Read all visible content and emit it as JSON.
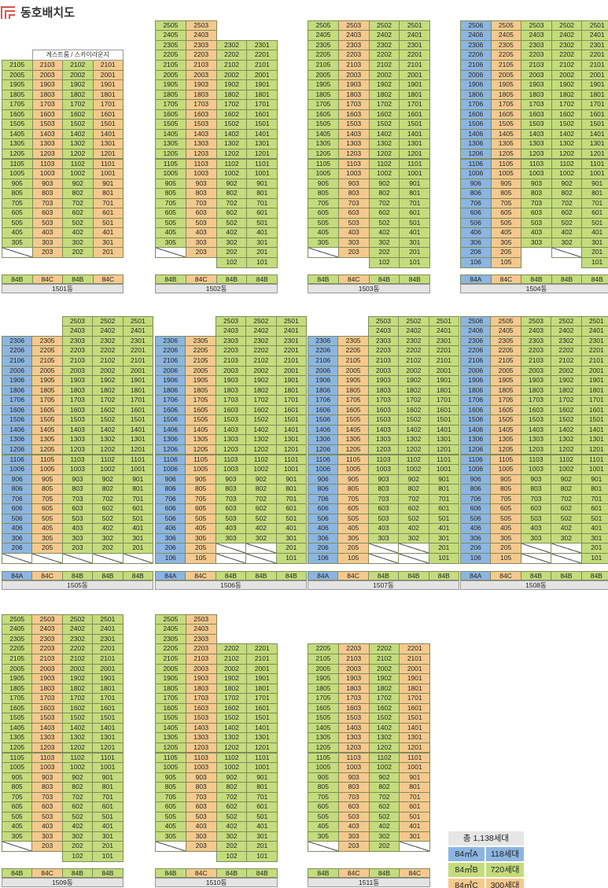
{
  "header": {
    "title": "동호배치도",
    "logo_icon": "building-logo-icon"
  },
  "colors": {
    "84A": "#8cb5e2",
    "84B": "#c4dc7c",
    "84C": "#f5c98d"
  },
  "legend": {
    "total": "총 1,138세대",
    "rows": [
      {
        "type_label": "84㎡A",
        "count": "118세대",
        "color": "#8cb5e2"
      },
      {
        "type_label": "84㎡B",
        "count": "720세대",
        "color": "#c4dc7c"
      },
      {
        "type_label": "84㎡C",
        "count": "300세대",
        "color": "#f5c98d"
      }
    ]
  },
  "buildings": [
    {
      "name": "1501동",
      "types": [
        "84B",
        "84C",
        "84B",
        "84C"
      ],
      "lines": [
        "05",
        "03",
        "02",
        "01"
      ],
      "top": [
        21,
        21,
        21,
        21
      ],
      "bottom": [
        3,
        2,
        2,
        2
      ],
      "empty": [
        [
          2,
          0
        ]
      ],
      "amenity": "게스트룸 / 스카이라운지"
    },
    {
      "name": "1502동",
      "types": [
        "84B",
        "84C",
        "84B",
        "84B"
      ],
      "lines": [
        "05",
        "03",
        "02",
        "01"
      ],
      "top": [
        25,
        25,
        23,
        23
      ],
      "bottom": [
        3,
        2,
        1,
        1
      ],
      "empty": [
        [
          2,
          0
        ]
      ]
    },
    {
      "name": "1503동",
      "types": [
        "84B",
        "84C",
        "84B",
        "84B"
      ],
      "lines": [
        "05",
        "03",
        "02",
        "01"
      ],
      "top": [
        25,
        25,
        25,
        25
      ],
      "bottom": [
        3,
        2,
        1,
        1
      ],
      "empty": [
        [
          2,
          0
        ]
      ]
    },
    {
      "name": "1504동",
      "types": [
        "84A",
        "84C",
        "84B",
        "84B",
        "84B"
      ],
      "lines": [
        "06",
        "05",
        "03",
        "02",
        "01"
      ],
      "top": [
        25,
        25,
        25,
        25,
        25
      ],
      "bottom": [
        1,
        1,
        3,
        3,
        1
      ],
      "empty": [
        [
          2,
          3
        ],
        [
          2,
          4
        ]
      ]
    },
    {
      "name": "1505동",
      "types": [
        "84A",
        "84C",
        "84B",
        "84B",
        "84B"
      ],
      "lines": [
        "06",
        "05",
        "03",
        "02",
        "01"
      ],
      "top": [
        23,
        23,
        25,
        25,
        25
      ],
      "bottom": [
        2,
        2,
        2,
        2,
        2
      ],
      "empty": [
        [
          1,
          0
        ],
        [
          1,
          1
        ],
        [
          1,
          2
        ],
        [
          1,
          3
        ],
        [
          1,
          4
        ]
      ]
    },
    {
      "name": "1506동",
      "types": [
        "84A",
        "84C",
        "84B",
        "84B",
        "84B"
      ],
      "lines": [
        "06",
        "05",
        "03",
        "02",
        "01"
      ],
      "top": [
        23,
        23,
        25,
        25,
        25
      ],
      "bottom": [
        1,
        1,
        3,
        3,
        1
      ],
      "empty": [
        [
          2,
          2
        ],
        [
          2,
          3
        ],
        [
          1,
          2
        ],
        [
          1,
          3
        ]
      ]
    },
    {
      "name": "1507동",
      "types": [
        "84A",
        "84C",
        "84B",
        "84B",
        "84B"
      ],
      "lines": [
        "06",
        "05",
        "03",
        "02",
        "01"
      ],
      "top": [
        23,
        23,
        25,
        25,
        25
      ],
      "bottom": [
        1,
        1,
        3,
        3,
        1
      ],
      "empty": [
        [
          2,
          2
        ],
        [
          2,
          3
        ],
        [
          1,
          2
        ],
        [
          1,
          3
        ]
      ]
    },
    {
      "name": "1508동",
      "types": [
        "84A",
        "84C",
        "84B",
        "84B",
        "84B"
      ],
      "lines": [
        "06",
        "05",
        "03",
        "02",
        "01"
      ],
      "top": [
        25,
        25,
        25,
        25,
        25
      ],
      "bottom": [
        1,
        1,
        3,
        3,
        1
      ],
      "empty": [
        [
          2,
          2
        ],
        [
          2,
          3
        ],
        [
          1,
          2
        ],
        [
          1,
          3
        ]
      ]
    },
    {
      "name": "1509동",
      "types": [
        "84B",
        "84C",
        "84B",
        "84B"
      ],
      "lines": [
        "05",
        "03",
        "02",
        "01"
      ],
      "top": [
        25,
        25,
        25,
        25
      ],
      "bottom": [
        3,
        2,
        1,
        1
      ],
      "empty": [
        [
          2,
          0
        ]
      ]
    },
    {
      "name": "1510동",
      "types": [
        "84B",
        "84C",
        "84B",
        "84B"
      ],
      "lines": [
        "05",
        "03",
        "02",
        "01"
      ],
      "top": [
        25,
        25,
        22,
        22
      ],
      "bottom": [
        3,
        2,
        1,
        1
      ],
      "empty": [
        [
          2,
          0
        ]
      ]
    },
    {
      "name": "1511동",
      "types": [
        "84B",
        "84C",
        "84B",
        "84C"
      ],
      "lines": [
        "05",
        "03",
        "02",
        "01"
      ],
      "top": [
        22,
        22,
        22,
        22
      ],
      "bottom": [
        3,
        2,
        2,
        3
      ],
      "empty": [
        [
          2,
          0
        ],
        [
          2,
          3
        ]
      ]
    }
  ]
}
